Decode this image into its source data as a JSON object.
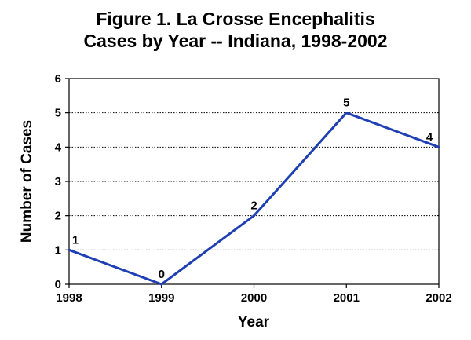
{
  "chart_data": {
    "type": "line",
    "title_line1": "Figure 1.  La Crosse Encephalitis",
    "title_line2": "Cases by Year -- Indiana, 1998-2002",
    "xlabel": "Year",
    "ylabel": "Number of Cases",
    "categories": [
      "1998",
      "1999",
      "2000",
      "2001",
      "2002"
    ],
    "series": [
      {
        "name": "Cases",
        "values": [
          1,
          0,
          2,
          5,
          4
        ]
      }
    ],
    "data_labels": [
      "1",
      "0",
      "2",
      "5",
      "4"
    ],
    "yticks": [
      "0",
      "1",
      "2",
      "3",
      "4",
      "5",
      "6"
    ],
    "ylim": [
      0,
      6
    ],
    "grid": "horizontal-dotted",
    "line_color": "#1f3fb4"
  }
}
